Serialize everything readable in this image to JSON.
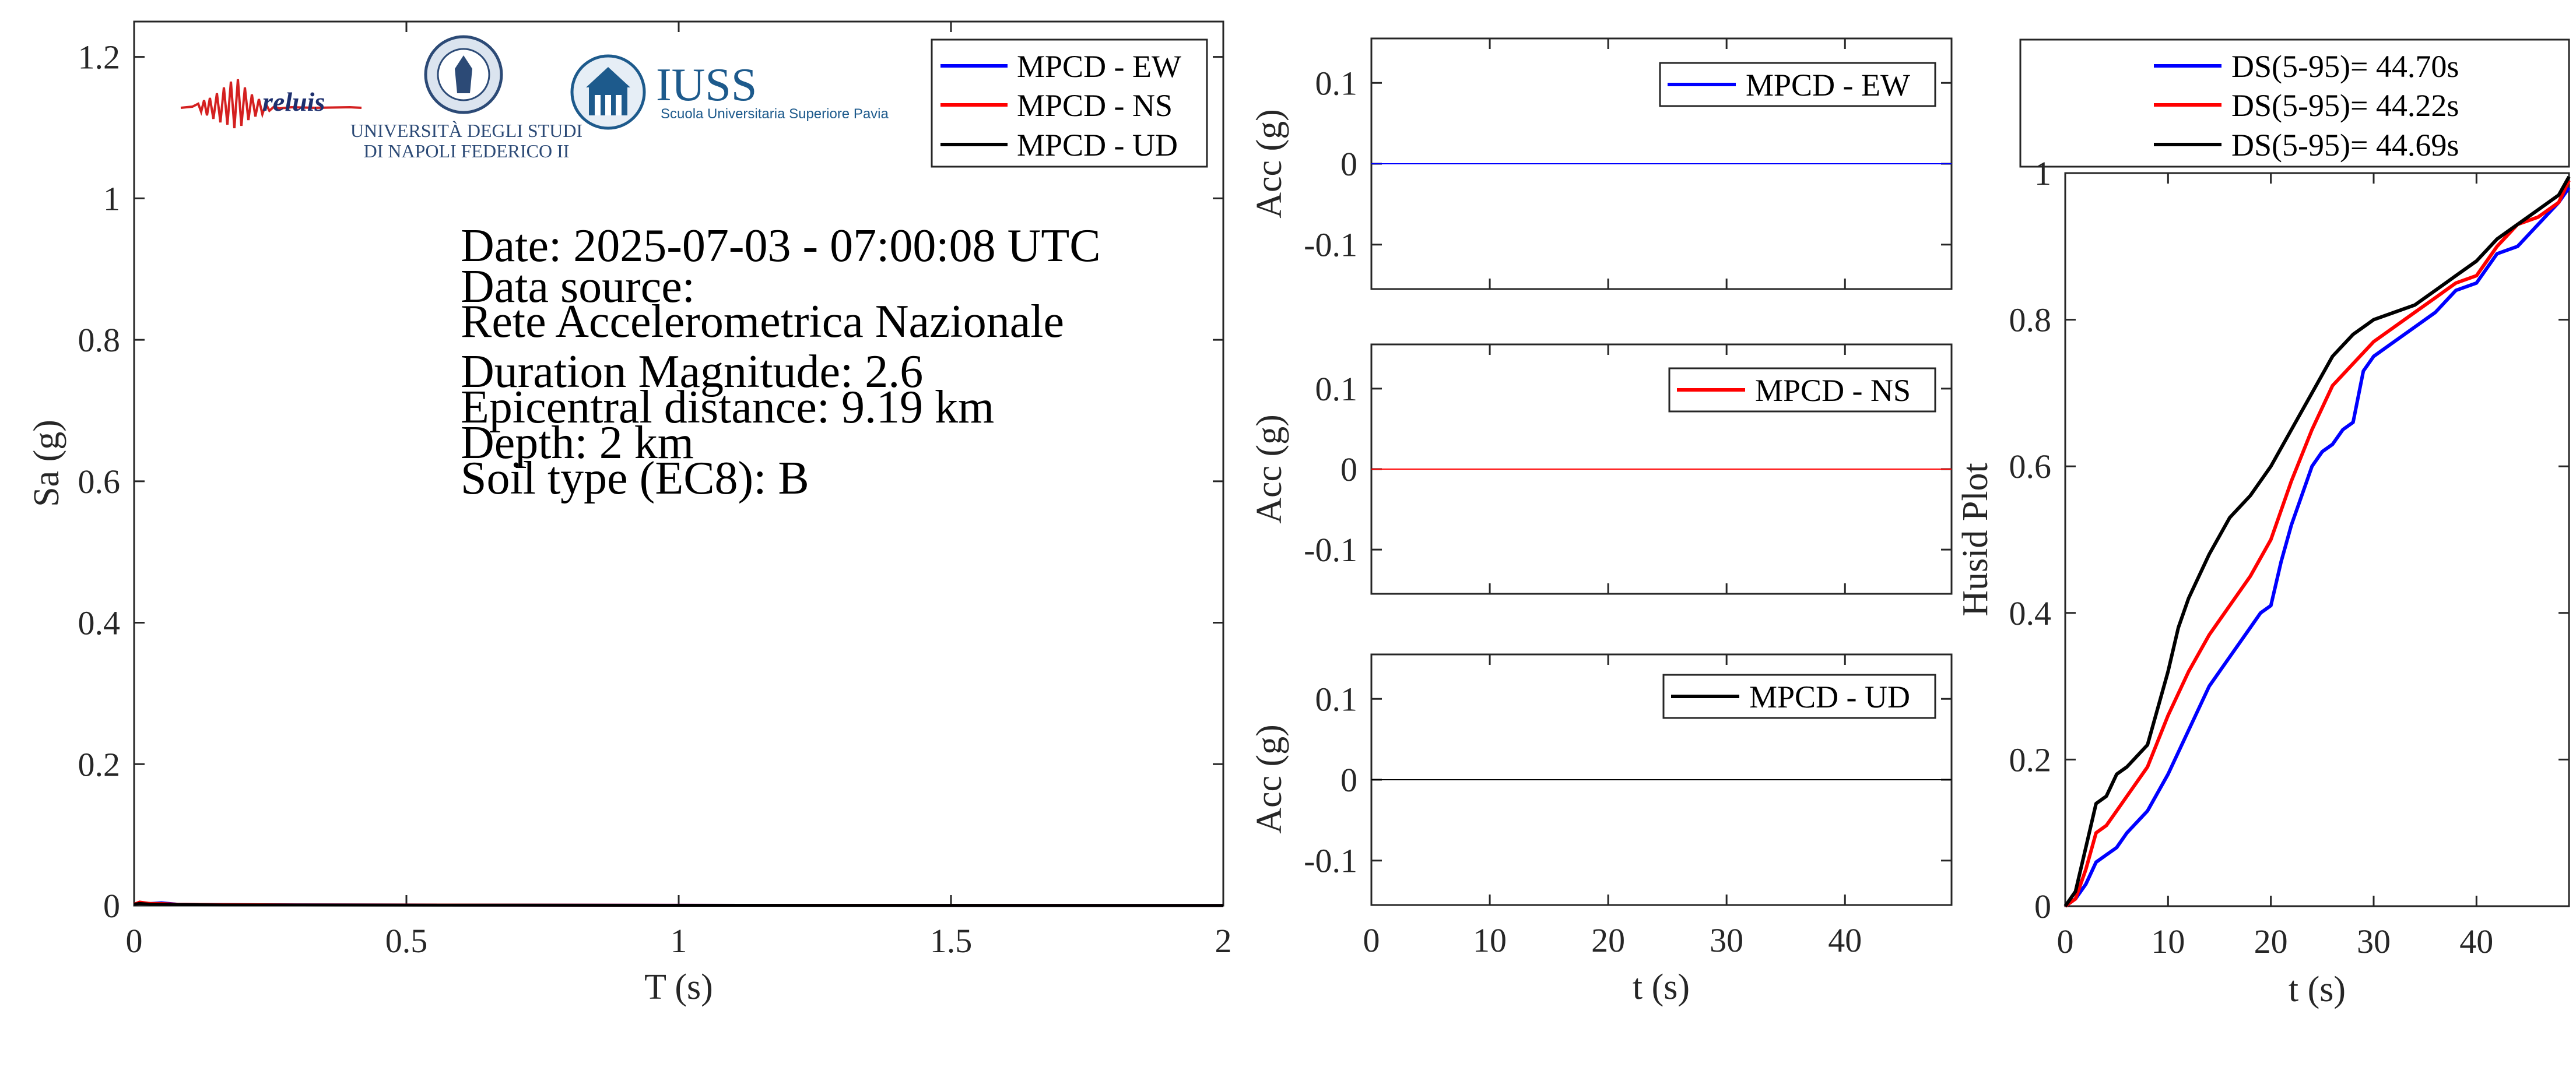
{
  "colors": {
    "ew": "#0000ff",
    "ns": "#ff0000",
    "ud": "#000000",
    "axis": "#262626",
    "iuss": "#1d5a8c"
  },
  "logos": {
    "reluis": "reluis",
    "unina_line1": "UNIVERSITÀ DEGLI STUDI",
    "unina_line2": "DI NAPOLI FEDERICO II",
    "iuss_title": "IUSS",
    "iuss_sub": "Scuola Universitaria Superiore Pavia"
  },
  "info": {
    "date": "Date: 2025-07-03 - 07:00:08 UTC",
    "source_label": "Data source:",
    "source": "Rete Accelerometrica Nazionale",
    "magnitude": "Duration Magnitude: 2.6",
    "distance": "Epicentral distance: 9.19 km",
    "depth": "Depth: 2 km",
    "soil": "Soil type (EC8): B"
  },
  "chart_data": [
    {
      "id": "spectrum",
      "type": "line",
      "xlabel": "T (s)",
      "ylabel": "Sa (g)",
      "xlim": [
        0,
        2
      ],
      "ylim": [
        0,
        1.25
      ],
      "xticks": [
        0,
        0.5,
        1,
        1.5,
        2
      ],
      "xtick_labels": [
        "0",
        "0.5",
        "1",
        "1.5",
        "2"
      ],
      "yticks": [
        0,
        0.2,
        0.4,
        0.6,
        0.8,
        1,
        1.2
      ],
      "ytick_labels": [
        "0",
        "0.2",
        "0.4",
        "0.6",
        "0.8",
        "1",
        "1.2"
      ],
      "legend": "top-right",
      "series": [
        {
          "name": "MPCD - EW",
          "color_key": "ew",
          "x": [
            0,
            0.01,
            0.03,
            0.05,
            0.08,
            0.15,
            0.3,
            1,
            2
          ],
          "y": [
            0.002,
            0.004,
            0.003,
            0.004,
            0.002,
            0.0015,
            0.001,
            0.0005,
            0.0002
          ]
        },
        {
          "name": "MPCD - NS",
          "color_key": "ns",
          "x": [
            0,
            0.01,
            0.03,
            0.05,
            0.08,
            0.15,
            0.3,
            1,
            2
          ],
          "y": [
            0.002,
            0.005,
            0.003,
            0.003,
            0.002,
            0.0015,
            0.001,
            0.0005,
            0.0002
          ]
        },
        {
          "name": "MPCD - UD",
          "color_key": "ud",
          "x": [
            0,
            0.01,
            0.03,
            0.05,
            0.08,
            0.15,
            0.3,
            1,
            2
          ],
          "y": [
            0.002,
            0.003,
            0.002,
            0.002,
            0.0015,
            0.001,
            0.0008,
            0.0004,
            0.0002
          ]
        }
      ]
    },
    {
      "id": "acc-ew",
      "type": "line",
      "ylabel": "Acc (g)",
      "xlim": [
        0,
        49
      ],
      "ylim": [
        -0.155,
        0.155
      ],
      "yticks": [
        0.1,
        0,
        -0.1
      ],
      "ytick_labels": [
        "0.1",
        "0",
        "-0.1"
      ],
      "legend": "top-right",
      "series": [
        {
          "name": "MPCD - EW",
          "color_key": "ew",
          "x": [
            0,
            49
          ],
          "y": [
            0,
            0
          ]
        }
      ]
    },
    {
      "id": "acc-ns",
      "type": "line",
      "ylabel": "Acc (g)",
      "xlim": [
        0,
        49
      ],
      "ylim": [
        -0.155,
        0.155
      ],
      "yticks": [
        0.1,
        0,
        -0.1
      ],
      "ytick_labels": [
        "0.1",
        "0",
        "-0.1"
      ],
      "legend": "top-right",
      "series": [
        {
          "name": "MPCD - NS",
          "color_key": "ns",
          "x": [
            0,
            49
          ],
          "y": [
            0,
            0
          ]
        }
      ]
    },
    {
      "id": "acc-ud",
      "type": "line",
      "xlabel": "t (s)",
      "ylabel": "Acc (g)",
      "xlim": [
        0,
        49
      ],
      "ylim": [
        -0.155,
        0.155
      ],
      "xticks": [
        0,
        10,
        20,
        30,
        40
      ],
      "xtick_labels": [
        "0",
        "10",
        "20",
        "30",
        "40"
      ],
      "yticks": [
        0.1,
        0,
        -0.1
      ],
      "ytick_labels": [
        "0.1",
        "0",
        "-0.1"
      ],
      "legend": "top-right",
      "series": [
        {
          "name": "MPCD - UD",
          "color_key": "ud",
          "x": [
            0,
            49
          ],
          "y": [
            0,
            0
          ]
        }
      ]
    },
    {
      "id": "husid",
      "type": "line",
      "xlabel": "t (s)",
      "ylabel": "Husid Plot",
      "xlim": [
        0,
        49
      ],
      "ylim": [
        0,
        1
      ],
      "xticks": [
        0,
        10,
        20,
        30,
        40
      ],
      "xtick_labels": [
        "0",
        "10",
        "20",
        "30",
        "40"
      ],
      "yticks": [
        0,
        0.2,
        0.4,
        0.6,
        0.8,
        1
      ],
      "ytick_labels": [
        "0",
        "0.2",
        "0.4",
        "0.6",
        "0.8",
        "1"
      ],
      "legend": "above",
      "series": [
        {
          "name": "DS(5-95)= 44.70s",
          "color_key": "ew",
          "x": [
            0,
            1,
            2,
            3,
            4,
            5,
            6,
            8,
            10,
            12,
            14,
            16,
            18,
            19,
            20,
            21,
            22,
            23,
            24,
            25,
            26,
            27,
            28,
            29,
            30,
            32,
            34,
            36,
            38,
            40,
            42,
            44,
            46,
            48,
            49
          ],
          "y": [
            0,
            0.01,
            0.03,
            0.06,
            0.07,
            0.08,
            0.1,
            0.13,
            0.18,
            0.24,
            0.3,
            0.34,
            0.38,
            0.4,
            0.41,
            0.47,
            0.52,
            0.56,
            0.6,
            0.62,
            0.63,
            0.65,
            0.66,
            0.73,
            0.75,
            0.77,
            0.79,
            0.81,
            0.84,
            0.85,
            0.89,
            0.9,
            0.93,
            0.96,
            0.98
          ]
        },
        {
          "name": "DS(5-95)= 44.22s",
          "color_key": "ns",
          "x": [
            0,
            1,
            2,
            3,
            4,
            5,
            6,
            8,
            10,
            12,
            14,
            16,
            18,
            20,
            22,
            24,
            26,
            28,
            30,
            32,
            34,
            36,
            38,
            40,
            42,
            44,
            46,
            48,
            49
          ],
          "y": [
            0,
            0.01,
            0.05,
            0.1,
            0.11,
            0.13,
            0.15,
            0.19,
            0.26,
            0.32,
            0.37,
            0.41,
            0.45,
            0.5,
            0.58,
            0.65,
            0.71,
            0.74,
            0.77,
            0.79,
            0.81,
            0.83,
            0.85,
            0.86,
            0.9,
            0.93,
            0.94,
            0.96,
            0.99
          ]
        },
        {
          "name": "DS(5-95)= 44.69s",
          "color_key": "ud",
          "x": [
            0,
            1,
            2,
            3,
            4,
            5,
            6,
            8,
            10,
            11,
            12,
            14,
            16,
            18,
            20,
            22,
            24,
            26,
            28,
            30,
            32,
            34,
            36,
            38,
            40,
            42,
            44,
            46,
            48,
            49
          ],
          "y": [
            0,
            0.02,
            0.08,
            0.14,
            0.15,
            0.18,
            0.19,
            0.22,
            0.32,
            0.38,
            0.42,
            0.48,
            0.53,
            0.56,
            0.6,
            0.65,
            0.7,
            0.75,
            0.78,
            0.8,
            0.81,
            0.82,
            0.84,
            0.86,
            0.88,
            0.91,
            0.93,
            0.95,
            0.97,
            0.995
          ]
        }
      ]
    }
  ]
}
